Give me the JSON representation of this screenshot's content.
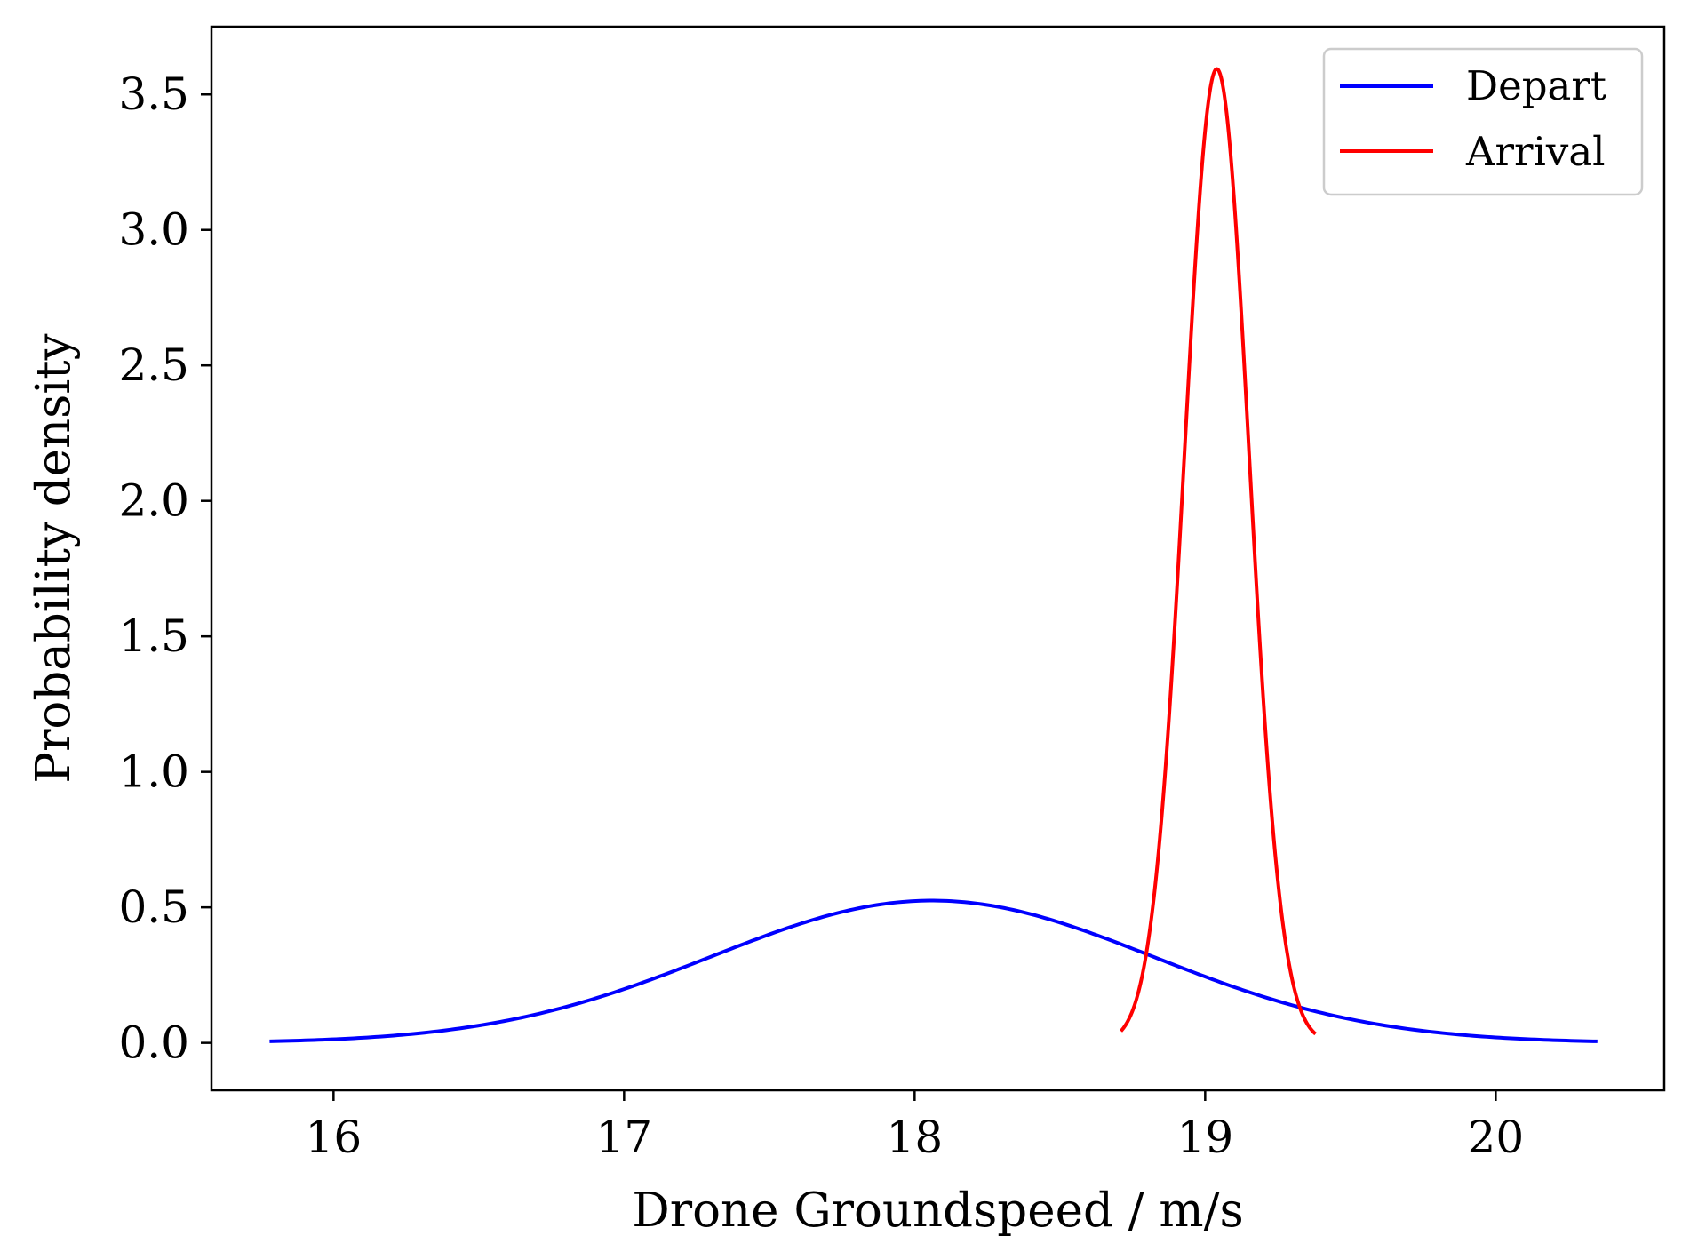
{
  "chart_data": {
    "type": "line",
    "title": "",
    "xlabel": "Drone Groundspeed / m/s",
    "ylabel": "Probability density",
    "xlim": [
      15.58,
      20.58
    ],
    "ylim": [
      -0.175,
      3.75
    ],
    "xticks": [
      16,
      17,
      18,
      19,
      20
    ],
    "xtick_labels": [
      "16",
      "17",
      "18",
      "19",
      "20"
    ],
    "yticks": [
      0.0,
      0.5,
      1.0,
      1.5,
      2.0,
      2.5,
      3.0,
      3.5
    ],
    "ytick_labels": [
      "0.0",
      "0.5",
      "1.0",
      "1.5",
      "2.0",
      "2.5",
      "3.0",
      "3.5"
    ],
    "grid": false,
    "legend_position": "top-right",
    "series": [
      {
        "name": "Depart",
        "color": "#0000ff",
        "distribution": "normal",
        "mean": 18.06,
        "std": 0.76,
        "x_range": [
          15.78,
          20.35
        ]
      },
      {
        "name": "Arrival",
        "color": "#ff0000",
        "distribution": "normal",
        "mean": 19.04,
        "std": 0.111,
        "x_range": [
          18.71,
          19.38
        ]
      }
    ]
  }
}
